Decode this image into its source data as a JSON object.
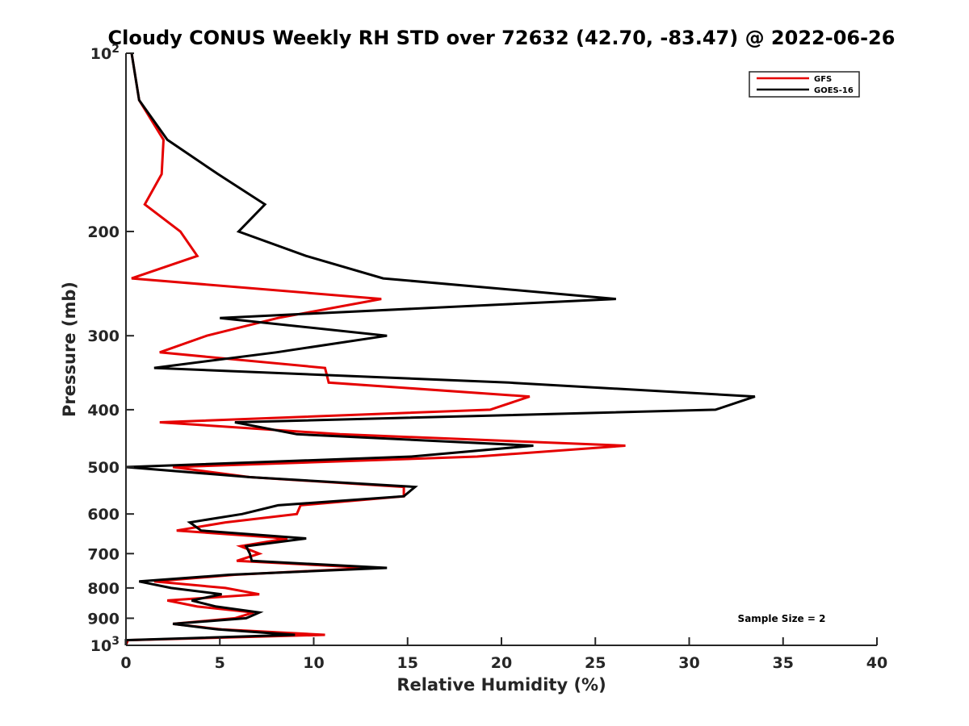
{
  "chart_data": {
    "type": "line",
    "title": "Cloudy CONUS Weekly RH STD over 72632 (42.70, -83.47) @ 2022-06-26",
    "xlabel": "Relative Humidity (%)",
    "ylabel": "Pressure (mb)",
    "xlim": [
      0,
      40
    ],
    "ylim": [
      100,
      1000
    ],
    "yscale": "log",
    "y_reversed": true,
    "grid": false,
    "x_ticks": [
      0,
      5,
      10,
      15,
      20,
      25,
      30,
      35,
      40
    ],
    "x_tick_labels": [
      "0",
      "5",
      "10",
      "15",
      "20",
      "25",
      "30",
      "35",
      "40"
    ],
    "y_ticks": [
      100,
      200,
      300,
      400,
      500,
      600,
      700,
      800,
      900,
      1000
    ],
    "y_tick_labels": [
      {
        "base": "10",
        "exp": "2"
      },
      {
        "text": "200"
      },
      {
        "text": "300"
      },
      {
        "text": "400"
      },
      {
        "text": "500"
      },
      {
        "text": "600"
      },
      {
        "text": "700"
      },
      {
        "text": "800"
      },
      {
        "text": "900"
      },
      {
        "base": "10",
        "exp": "3"
      }
    ],
    "legend": {
      "placement": "top-right",
      "entries": [
        "GFS",
        "GOES-16"
      ]
    },
    "annotation": "Sample Size = 2",
    "pressure": [
      100,
      120,
      140,
      160,
      180,
      200,
      220,
      240,
      260,
      280,
      300,
      320,
      340,
      360,
      380,
      400,
      420,
      440,
      460,
      480,
      500,
      520,
      540,
      560,
      580,
      600,
      620,
      640,
      660,
      680,
      700,
      720,
      740,
      760,
      780,
      800,
      820,
      840,
      860,
      880,
      900,
      920,
      940,
      960,
      980
    ],
    "series": [
      {
        "name": "GFS",
        "color": "#e50000",
        "values": [
          0.3,
          0.7,
          2.0,
          1.9,
          1.0,
          2.9,
          3.8,
          0.3,
          13.6,
          8.1,
          4.3,
          1.8,
          10.6,
          10.8,
          21.5,
          19.4,
          1.8,
          11.4,
          26.6,
          18.7,
          2.5,
          6.6,
          14.8,
          14.8,
          9.3,
          9.1,
          5.3,
          2.7,
          8.6,
          6.1,
          7.1,
          5.9,
          13.1,
          5.8,
          1.5,
          5.3,
          7.1,
          2.2,
          3.8,
          6.8,
          5.8,
          2.5,
          5.1,
          10.6,
          0.1
        ]
      },
      {
        "name": "GOES-16",
        "color": "#000000",
        "values": [
          0.3,
          0.7,
          2.2,
          4.9,
          7.4,
          6.0,
          9.6,
          13.7,
          26.1,
          5.0,
          13.9,
          8.0,
          1.5,
          20.4,
          33.5,
          31.4,
          5.8,
          9.1,
          21.7,
          15.2,
          0.0,
          6.6,
          15.4,
          14.8,
          8.1,
          6.2,
          3.4,
          4.0,
          9.6,
          6.4,
          6.6,
          6.7,
          13.9,
          5.5,
          0.7,
          2.4,
          5.1,
          3.5,
          4.8,
          7.1,
          6.4,
          2.5,
          4.9,
          9.0,
          0.0
        ]
      }
    ]
  }
}
